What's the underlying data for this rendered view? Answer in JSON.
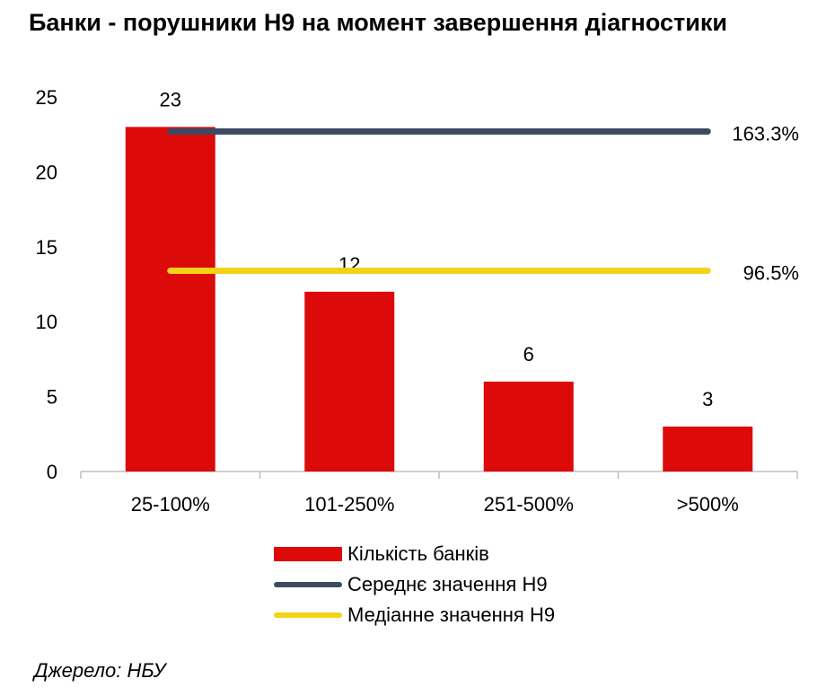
{
  "chart_data": {
    "type": "bar",
    "title": "Банки - порушники Н9 на момент завершення діагностики",
    "categories": [
      "25-100%",
      "101-250%",
      "251-500%",
      ">500%"
    ],
    "values": [
      23,
      12,
      6,
      3
    ],
    "ylim": [
      0,
      25
    ],
    "yticks": [
      "0",
      "5",
      "10",
      "15",
      "20",
      "25"
    ],
    "grid": false,
    "series": [
      {
        "name": "Кількість банків",
        "type": "bar",
        "values": [
          23,
          12,
          6,
          3
        ],
        "color": "#dd0a0a"
      }
    ],
    "reference_lines": [
      {
        "name": "Середнє значення Н9",
        "label": "163.3%",
        "y": 22.7,
        "color": "#3c4a63"
      },
      {
        "name": "Медіанне значення Н9",
        "label": "96.5%",
        "y": 13.4,
        "color": "#f5d21a"
      }
    ],
    "legend": {
      "placement": "bottom",
      "entries": [
        "Кількість банків",
        "Середнє значення Н9",
        "Медіанне значення Н9"
      ]
    },
    "source": "Джерело: НБУ"
  }
}
